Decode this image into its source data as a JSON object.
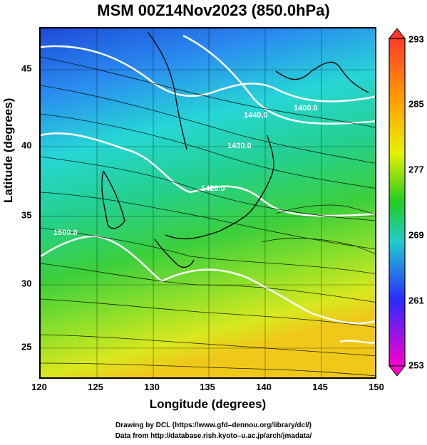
{
  "title": "MSM 00Z14Nov2023 (850.0hPa)",
  "axes": {
    "xlabel": "Longitude (degrees)",
    "ylabel": "Latitude  (degrees)",
    "x_ticks": [
      "120",
      "125",
      "130",
      "135",
      "140",
      "145",
      "150"
    ],
    "y_ticks": [
      "25",
      "30",
      "35",
      "40",
      "45"
    ]
  },
  "colorbar": {
    "labels": [
      "293",
      "285",
      "277",
      "269",
      "261",
      "253"
    ],
    "colors": [
      "#ff3a2a",
      "#ffa500",
      "#ffff00",
      "#22cc22",
      "#22cccc",
      "#2a2aff",
      "#ff00cc"
    ]
  },
  "contours": [
    "1400.0",
    "1440.0",
    "1430.0",
    "1420.0",
    "1500.0"
  ],
  "credits": {
    "line1": "Drawing by DCL (https://www.gfd–dennou.org/library/dcl/)",
    "line2": "Data from http://database.rish.kyoto–u.ac.jp/arch/jmadata/"
  }
}
